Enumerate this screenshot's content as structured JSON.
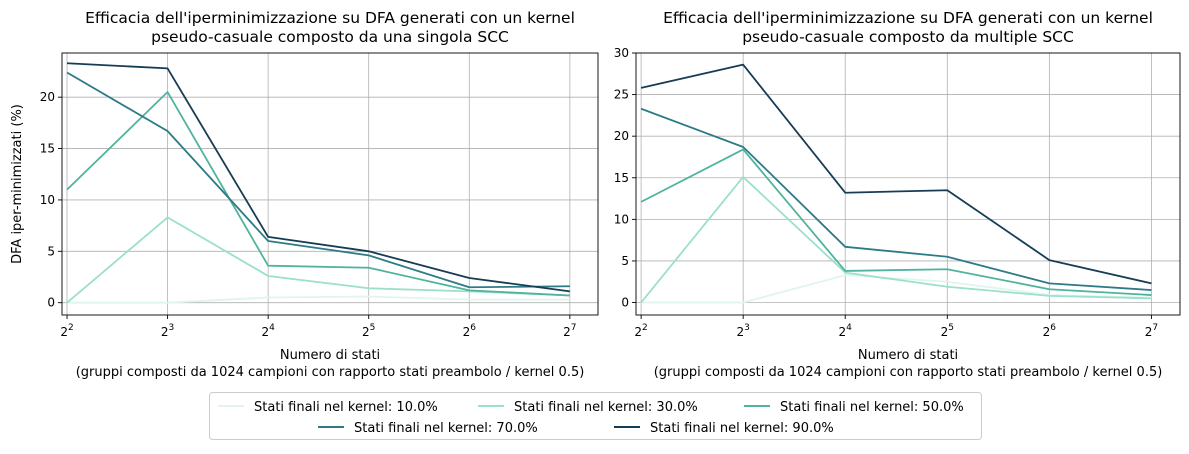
{
  "chart_data": [
    {
      "type": "line",
      "title": "Efficacia dell'iperminimizzazione su DFA generati con un kernel\npseudo-casuale composto da una singola SCC",
      "xlabel": "Numero di stati\n(gruppi composti da 1024 campioni con rapporto stati preambolo / kernel 0.5)",
      "ylabel": "DFA iper-minimizzati (%)",
      "x": [
        2,
        3,
        4,
        5,
        6,
        7
      ],
      "x_scale": "log2",
      "xlim": [
        1.95,
        7.28
      ],
      "ylim": [
        -1.2,
        24.3
      ],
      "yticks": [
        0,
        5,
        10,
        15,
        20
      ],
      "grid": true,
      "series": [
        {
          "name": "Stati finali nel kernel: 10.0%",
          "values": [
            0,
            0,
            0.5,
            0.6,
            0.3,
            0.3
          ]
        },
        {
          "name": "Stati finali nel kernel: 30.0%",
          "values": [
            0,
            8.3,
            2.6,
            1.4,
            1.1,
            0.7
          ]
        },
        {
          "name": "Stati finali nel kernel: 50.0%",
          "values": [
            11.0,
            20.5,
            3.6,
            3.4,
            1.2,
            0.7
          ]
        },
        {
          "name": "Stati finali nel kernel: 70.0%",
          "values": [
            22.4,
            16.7,
            6.0,
            4.6,
            1.5,
            1.6
          ]
        },
        {
          "name": "Stati finali nel kernel: 90.0%",
          "values": [
            23.3,
            22.8,
            6.4,
            5.0,
            2.4,
            1.1
          ]
        }
      ]
    },
    {
      "type": "line",
      "title": "Efficacia dell'iperminimizzazione su DFA generati con un kernel\npseudo-casuale composto da multiple SCC",
      "xlabel": "Numero di stati\n(gruppi composti da 1024 campioni con rapporto stati preambolo / kernel 0.5)",
      "ylabel": "",
      "x": [
        2,
        3,
        4,
        5,
        6,
        7
      ],
      "x_scale": "log2",
      "xlim": [
        1.95,
        7.28
      ],
      "ylim": [
        -1.5,
        30.0
      ],
      "yticks": [
        0,
        5,
        10,
        15,
        20,
        25,
        30
      ],
      "grid": true,
      "series": [
        {
          "name": "Stati finali nel kernel: 10.0%",
          "values": [
            0,
            0,
            3.3,
            2.5,
            0.9,
            0.6
          ]
        },
        {
          "name": "Stati finali nel kernel: 30.0%",
          "values": [
            0,
            15.1,
            3.6,
            1.9,
            0.8,
            0.5
          ]
        },
        {
          "name": "Stati finali nel kernel: 50.0%",
          "values": [
            12.1,
            18.4,
            3.8,
            4.0,
            1.6,
            0.9
          ]
        },
        {
          "name": "Stati finali nel kernel: 70.0%",
          "values": [
            23.3,
            18.7,
            6.7,
            5.5,
            2.3,
            1.5
          ]
        },
        {
          "name": "Stati finali nel kernel: 90.0%",
          "values": [
            25.8,
            28.6,
            13.2,
            13.5,
            5.1,
            2.3
          ]
        }
      ]
    }
  ],
  "legend": {
    "placement": "bottom-center",
    "entries": [
      "Stati finali nel kernel: 10.0%",
      "Stati finali nel kernel: 30.0%",
      "Stati finali nel kernel: 50.0%",
      "Stati finali nel kernel: 70.0%",
      "Stati finali nel kernel: 90.0%"
    ]
  },
  "colors": {
    "series": [
      "#dff5ee",
      "#9be0c8",
      "#4fb39d",
      "#2e7b88",
      "#173c55"
    ],
    "grid": "#b0b0b0",
    "axes": "#000000"
  }
}
